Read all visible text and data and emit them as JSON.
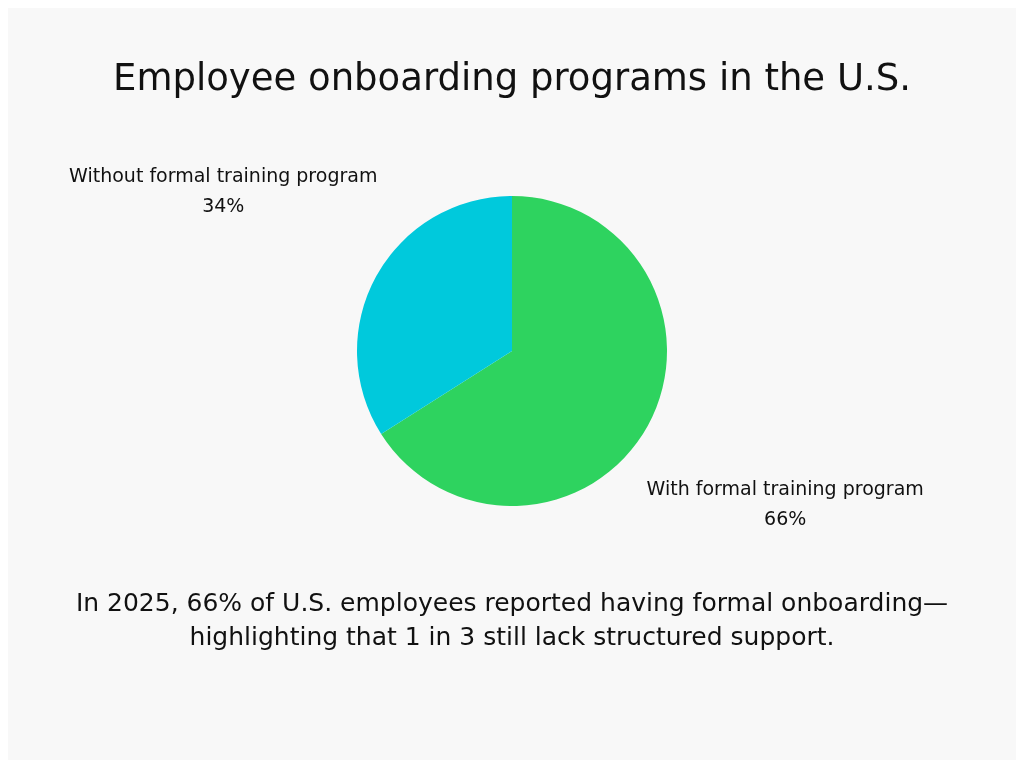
{
  "chart_data": {
    "type": "pie",
    "title": "Employee onboarding programs in the U.S.",
    "categories": [
      "With formal training program",
      "Without formal training program"
    ],
    "values": [
      66,
      34
    ],
    "colors": [
      "#2ed35f",
      "#00c9dc"
    ],
    "value_labels": [
      "66%",
      "34%"
    ],
    "legend": false,
    "annotations": [
      "In 2025, 66% of U.S. employees reported having formal onboarding—highlighting that 1 in 3 still lack structured support."
    ]
  }
}
